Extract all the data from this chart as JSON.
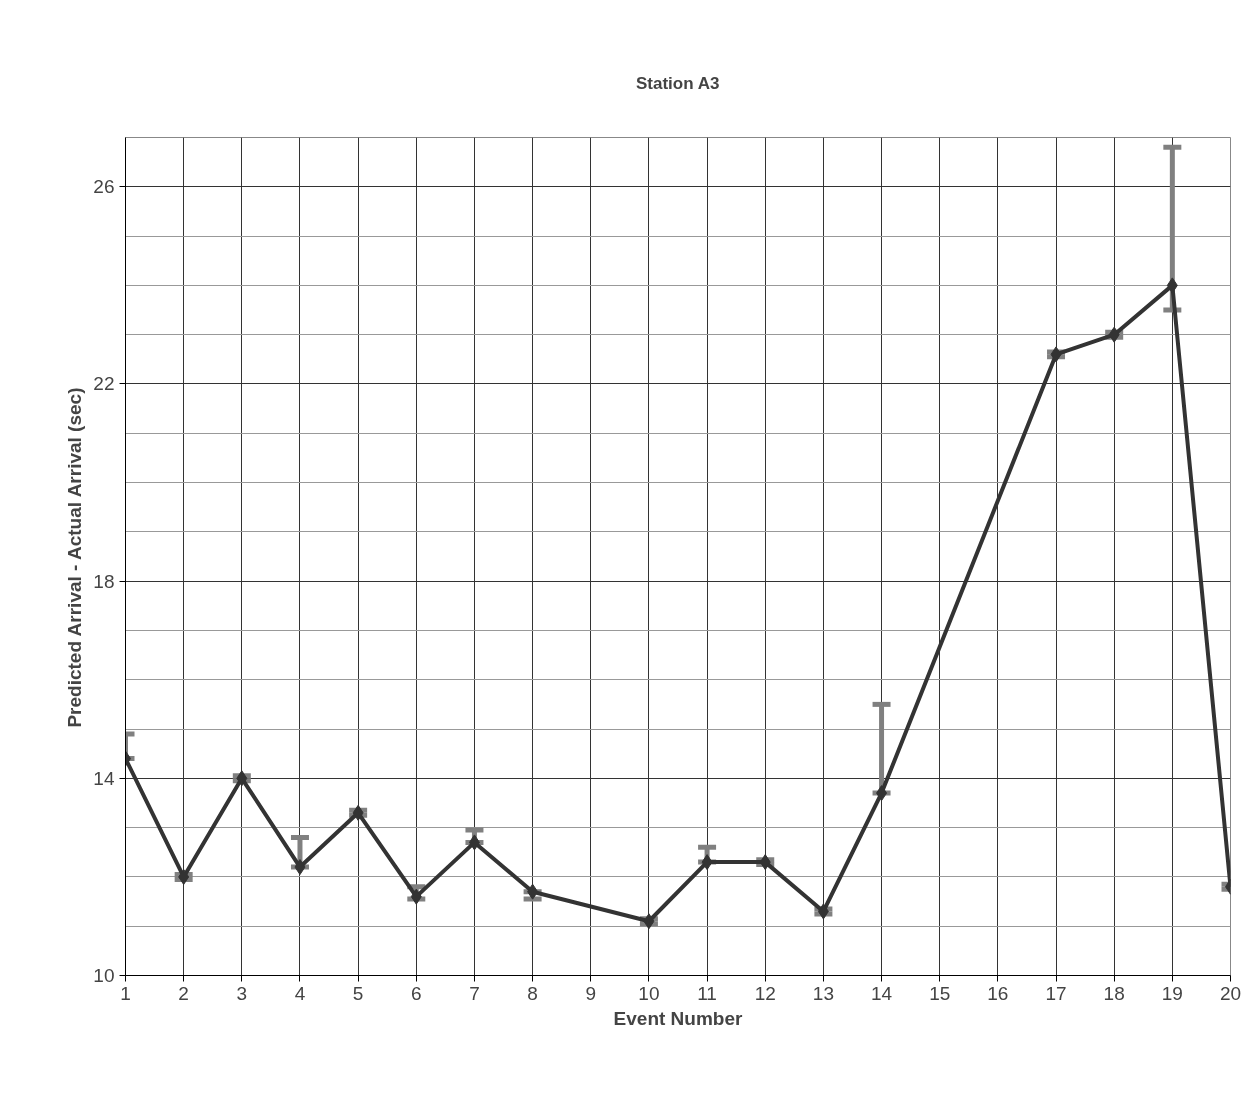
{
  "chart_data": {
    "type": "line",
    "title": "Station A3",
    "xlabel": "Event Number",
    "ylabel": "Predicted Arrival - Actual Arrival (sec)",
    "x": [
      1,
      2,
      3,
      4,
      5,
      6,
      7,
      8,
      10,
      11,
      12,
      13,
      14,
      17,
      18,
      19,
      20
    ],
    "series": [
      {
        "color": "#333333",
        "values": [
          14.4,
          12.0,
          14.0,
          12.2,
          13.3,
          11.6,
          12.7,
          11.7,
          11.1,
          12.3,
          12.3,
          11.3,
          13.7,
          22.6,
          23.0,
          24.0,
          11.8
        ],
        "errors": [
          [
            14.4,
            14.9
          ],
          0.05,
          0.05,
          [
            12.2,
            12.8
          ],
          0.05,
          [
            11.55,
            11.8
          ],
          [
            12.7,
            12.95
          ],
          [
            11.55,
            11.7
          ],
          0.05,
          [
            12.3,
            12.6
          ],
          0.05,
          0.05,
          [
            13.7,
            15.5
          ],
          0.05,
          0.05,
          [
            23.5,
            26.8
          ],
          0.05
        ]
      }
    ],
    "xlim": [
      1,
      20
    ],
    "xticks": [
      1,
      2,
      3,
      4,
      5,
      6,
      7,
      8,
      9,
      10,
      11,
      12,
      13,
      14,
      15,
      16,
      17,
      18,
      19,
      20
    ],
    "ylim": [
      10,
      27
    ],
    "yticks": [
      10,
      14,
      18,
      22,
      26
    ],
    "grid": true,
    "marker": "diamond",
    "line_style": "solid"
  }
}
